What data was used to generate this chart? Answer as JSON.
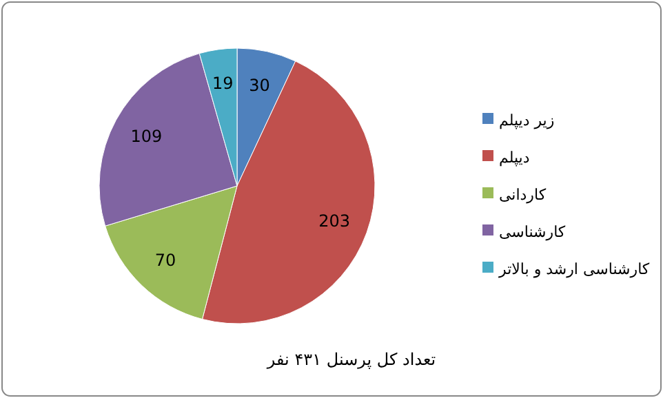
{
  "chart_data": {
    "type": "pie",
    "title": "تعداد کل پرسنل ۴۳۱ نفر",
    "categories": [
      "زیر دیپلم",
      "دیپلم",
      "کاردانی",
      "کارشناسی",
      "کارشناسی ارشد و بالاتر"
    ],
    "values": [
      30,
      203,
      70,
      109,
      19
    ],
    "colors": [
      "#4f81bd",
      "#c0504d",
      "#9bbb59",
      "#8064a2",
      "#4bacc6"
    ],
    "data_labels": true,
    "legend": "right"
  }
}
